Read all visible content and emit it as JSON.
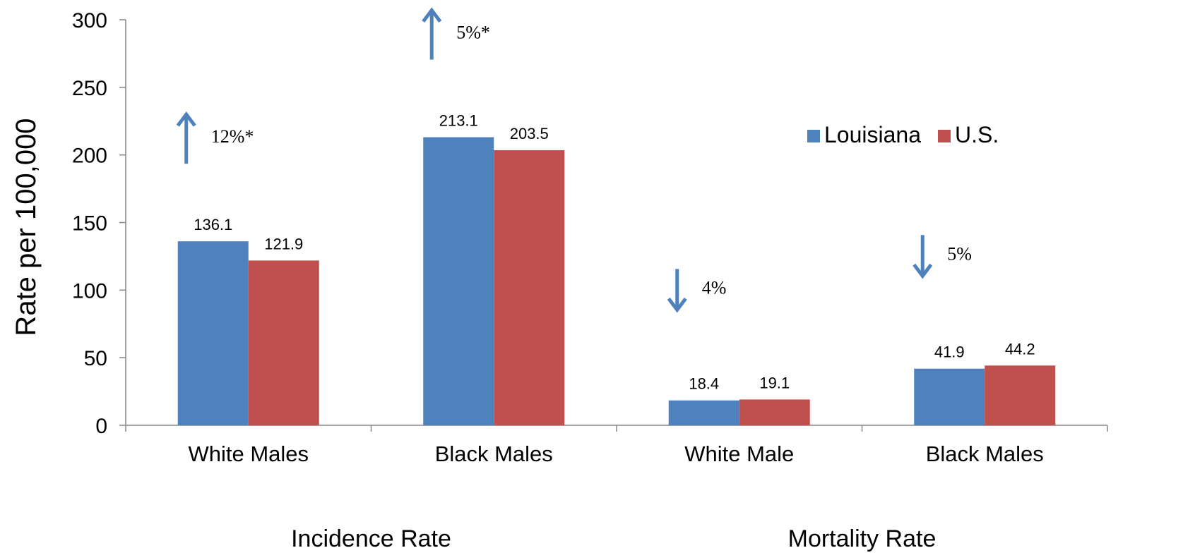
{
  "chart_data": {
    "type": "bar",
    "title": "",
    "ylabel": "Rate per 100,000",
    "ylim": [
      0,
      300
    ],
    "yticks": [
      0,
      50,
      100,
      150,
      200,
      250,
      300
    ],
    "grid": false,
    "legend_position": "right",
    "categories": [
      "White Males",
      "Black Males",
      "White Male",
      "Black Males"
    ],
    "groups": [
      "Incidence Rate",
      "Mortality Rate"
    ],
    "series": [
      {
        "name": "Louisiana",
        "color": "#4F81BD",
        "values": [
          136.1,
          213.1,
          18.4,
          41.9
        ],
        "labels": [
          "136.1",
          "213.1",
          "18.4",
          "41.9"
        ]
      },
      {
        "name": "U.S.",
        "color": "#C0504D",
        "values": [
          121.9,
          203.5,
          19.1,
          44.2
        ],
        "labels": [
          "121.9",
          "203.5",
          "19.1",
          "44.2"
        ]
      }
    ],
    "annotations": [
      {
        "category_index": 0,
        "direction": "up",
        "text": "12%*"
      },
      {
        "category_index": 1,
        "direction": "up",
        "text": "5%*"
      },
      {
        "category_index": 2,
        "direction": "down",
        "text": "4%"
      },
      {
        "category_index": 3,
        "direction": "down",
        "text": "5%"
      }
    ],
    "arrow_color": "#4F81BD"
  }
}
